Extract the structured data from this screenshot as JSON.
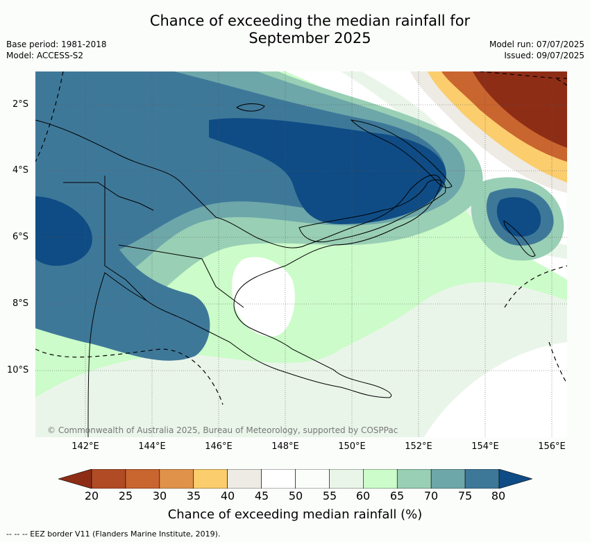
{
  "title_line1": "Chance of exceeding the median rainfall for",
  "title_line2": "September 2025",
  "base_period": "Base period: 1981-2018",
  "model": "Model: ACCESS-S2",
  "model_run": "Model run: 07/07/2025",
  "issued": "Issued: 09/07/2025",
  "copyright": "© Commonwealth of Australia 2025, Bureau of Meteorology, supported by COSPPac",
  "lat_labels": [
    "2°S",
    "4°S",
    "6°S",
    "8°S",
    "10°S"
  ],
  "lon_labels": [
    "142°E",
    "144°E",
    "146°E",
    "148°E",
    "150°E",
    "152°E",
    "154°E",
    "156°E"
  ],
  "colorbar": {
    "ticks": [
      "20",
      "25",
      "30",
      "35",
      "40",
      "45",
      "50",
      "55",
      "60",
      "65",
      "70",
      "75",
      "80"
    ],
    "colors": [
      "#8e2d16",
      "#b04b25",
      "#c9652f",
      "#e0924a",
      "#fbcd6c",
      "#eeeae4",
      "#ffffff",
      "#fbfdfb",
      "#eaf5ea",
      "#ccfcc9",
      "#99cfb5",
      "#6ea7a9",
      "#3e7899",
      "#0f4c85"
    ],
    "label": "Chance of exceeding median rainfall (%)"
  },
  "footer": "--  --  -- EEZ border V11 (Flanders Marine Institute, 2019)."
}
